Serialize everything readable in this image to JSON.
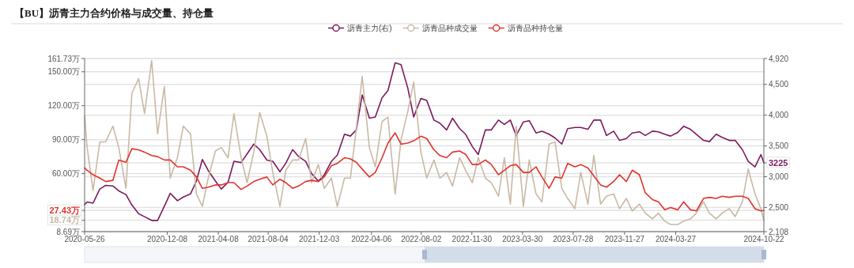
{
  "chart_data": {
    "type": "line",
    "title": "【BU】沥青主力合约价格与成交量、持仓量",
    "x": [
      "2020-05-26",
      "2020-06-01",
      "2020-06-15",
      "2020-07-01",
      "2020-07-15",
      "2020-08-01",
      "2020-08-15",
      "2020-09-01",
      "2020-09-15",
      "2020-10-01",
      "2020-10-15",
      "2020-11-01",
      "2020-11-15",
      "2020-12-01",
      "2020-12-15",
      "2021-01-01",
      "2021-01-15",
      "2021-02-01",
      "2021-02-15",
      "2021-03-01",
      "2021-03-15",
      "2021-04-01",
      "2021-04-15",
      "2021-05-01",
      "2021-05-15",
      "2021-06-01",
      "2021-06-15",
      "2021-07-01",
      "2021-07-15",
      "2021-08-01",
      "2021-08-15",
      "2021-09-01",
      "2021-09-15",
      "2021-10-01",
      "2021-10-15",
      "2021-11-01",
      "2021-11-15",
      "2021-12-01",
      "2021-12-15",
      "2022-01-01",
      "2022-01-15",
      "2022-02-01",
      "2022-02-15",
      "2022-03-01",
      "2022-03-15",
      "2022-04-01",
      "2022-04-15",
      "2022-05-01",
      "2022-05-15",
      "2022-06-01",
      "2022-06-15",
      "2022-07-01",
      "2022-07-15",
      "2022-08-01",
      "2022-08-15",
      "2022-09-01",
      "2022-09-15",
      "2022-10-01",
      "2022-10-15",
      "2022-11-01",
      "2022-11-15",
      "2022-12-01",
      "2022-12-15",
      "2023-01-01",
      "2023-01-15",
      "2023-02-01",
      "2023-02-15",
      "2023-03-01",
      "2023-03-15",
      "2023-04-01",
      "2023-04-15",
      "2023-05-01",
      "2023-05-15",
      "2023-06-01",
      "2023-06-15",
      "2023-07-01",
      "2023-07-15",
      "2023-08-01",
      "2023-08-15",
      "2023-09-01",
      "2023-09-15",
      "2023-10-01",
      "2023-10-15",
      "2023-11-01",
      "2023-11-15",
      "2023-12-01",
      "2023-12-15",
      "2024-01-01",
      "2024-01-15",
      "2024-02-01",
      "2024-02-15",
      "2024-03-01",
      "2024-03-15",
      "2024-04-01",
      "2024-04-15",
      "2024-05-01",
      "2024-05-15",
      "2024-06-01",
      "2024-06-15",
      "2024-07-01",
      "2024-07-15",
      "2024-08-01",
      "2024-08-15",
      "2024-09-01",
      "2024-09-15",
      "2024-10-01",
      "2024-10-15",
      "2024-10-22"
    ],
    "xlim": [
      "2020-05-26",
      "2024-10-22"
    ],
    "xticks": [
      "2020-05-26",
      "2020-12-08",
      "2021-04-08",
      "2021-08-04",
      "2021-12-03",
      "2022-04-06",
      "2022-08-02",
      "2022-11-30",
      "2023-03-30",
      "2023-07-28",
      "2023-11-27",
      "2024-03-27",
      "2024-10-22"
    ],
    "ylim": [
      8.69,
      161.73
    ],
    "yticks": [
      {
        "value": 8.69,
        "label": "8.69万"
      },
      {
        "value": 18.74,
        "label": "18.74万"
      },
      {
        "value": 27.43,
        "label": "27.43万"
      },
      {
        "value": 60,
        "label": "60.00万"
      },
      {
        "value": 90,
        "label": "90.00万"
      },
      {
        "value": 120,
        "label": "120.00万"
      },
      {
        "value": 150,
        "label": "150.00万"
      },
      {
        "value": 161.73,
        "label": "161.73万"
      }
    ],
    "y2lim": [
      2108,
      4920
    ],
    "y2ticks": [
      {
        "value": 2108,
        "label": "2,108"
      },
      {
        "value": 2500,
        "label": "2,500"
      },
      {
        "value": 3000,
        "label": "3,000"
      },
      {
        "value": 3225,
        "label": "3225"
      },
      {
        "value": 3500,
        "label": "3,500"
      },
      {
        "value": 4000,
        "label": "4,000"
      },
      {
        "value": 4500,
        "label": "4,500"
      },
      {
        "value": 4920,
        "label": "4,920"
      }
    ],
    "grid": "y",
    "legend": "top",
    "marker": "none",
    "series": [
      {
        "name": "沥青主力(右)",
        "color": "#7b1a5e",
        "axis": "y2",
        "values": [
          2550,
          2590,
          2570,
          2800,
          2860,
          2850,
          2770,
          2710,
          2540,
          2400,
          2350,
          2290,
          2290,
          2520,
          2730,
          2610,
          2670,
          2720,
          2930,
          3280,
          3100,
          2930,
          2800,
          2910,
          3250,
          3230,
          3370,
          3530,
          3440,
          3270,
          3250,
          3080,
          3220,
          3440,
          3330,
          3250,
          3050,
          2930,
          3030,
          3250,
          3350,
          3690,
          3660,
          3760,
          4330,
          3950,
          3970,
          4280,
          4400,
          4850,
          4820,
          4440,
          3970,
          4270,
          4240,
          3920,
          3870,
          3760,
          3950,
          3780,
          3690,
          3490,
          3360,
          3760,
          3760,
          3920,
          3850,
          3920,
          3670,
          3890,
          3910,
          3710,
          3740,
          3690,
          3630,
          3530,
          3780,
          3800,
          3800,
          3770,
          3920,
          3920,
          3670,
          3740,
          3590,
          3620,
          3710,
          3730,
          3670,
          3740,
          3730,
          3690,
          3660,
          3720,
          3820,
          3770,
          3690,
          3590,
          3570,
          3690,
          3640,
          3590,
          3590,
          3440,
          3250,
          3160,
          3360,
          3225
        ]
      },
      {
        "name": "沥青品种成交量",
        "color": "#c9b9a4",
        "values": [
          111,
          83,
          45,
          88,
          88,
          102,
          83,
          47,
          131,
          144,
          113,
          160,
          95,
          137,
          56,
          74,
          102,
          95,
          42,
          31,
          56,
          80,
          83,
          74,
          113,
          74,
          52,
          79,
          114,
          93,
          61,
          31,
          63,
          72,
          72,
          91,
          52,
          68,
          47,
          56,
          31,
          56,
          56,
          100,
          146,
          83,
          66,
          106,
          110,
          42,
          90,
          115,
          141,
          79,
          56,
          72,
          56,
          61,
          49,
          74,
          63,
          52,
          74,
          56,
          52,
          40,
          74,
          33,
          102,
          31,
          72,
          42,
          35,
          86,
          88,
          47,
          38,
          29,
          61,
          33,
          76,
          33,
          40,
          42,
          29,
          38,
          27,
          33,
          25,
          20,
          25,
          18,
          15,
          15,
          18,
          20,
          25,
          35,
          25,
          20,
          25,
          29,
          22,
          35,
          64,
          42,
          29,
          18.74
        ]
      },
      {
        "name": "沥青品种持仓量",
        "color": "#e0332e",
        "values": [
          65,
          63,
          59,
          56,
          53,
          54,
          72,
          70,
          82,
          81,
          79,
          76,
          75,
          72,
          72,
          66,
          66,
          63,
          57,
          47,
          48,
          50,
          50,
          52,
          52,
          46,
          49,
          53,
          55,
          57,
          50,
          55,
          52,
          47,
          49,
          53,
          54,
          53,
          57,
          67,
          69,
          74,
          73,
          70,
          64,
          57,
          61,
          74,
          87,
          96,
          86,
          87,
          89,
          93,
          91,
          81,
          76,
          74,
          79,
          80,
          77,
          68,
          68,
          72,
          68,
          59,
          63,
          67,
          68,
          61,
          61,
          66,
          57,
          47,
          57,
          56,
          69,
          66,
          68,
          65,
          58,
          50,
          48,
          53,
          59,
          53,
          63,
          59,
          43,
          37,
          35,
          28,
          30,
          28,
          35,
          28,
          27,
          38,
          39,
          38,
          40,
          39,
          40,
          40,
          38,
          29,
          27,
          27.43
        ]
      }
    ]
  }
}
